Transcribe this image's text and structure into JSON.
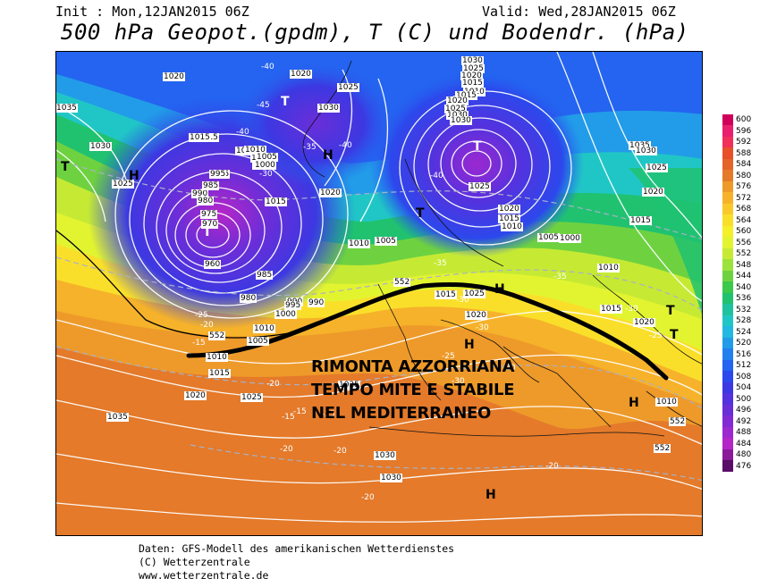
{
  "header": {
    "init": "Init : Mon,12JAN2015 06Z",
    "valid": "Valid: Wed,28JAN2015 06Z",
    "title": "500 hPa Geopot.(gpdm), T (C) und Bodendr. (hPa)"
  },
  "annotation": {
    "line1": "RIMONTA AZZORRIANA",
    "line2": "TEMPO MITE E STABILE",
    "line3": "NEL MEDITERRANEO"
  },
  "pressure_centers": [
    {
      "letter": "T",
      "dark": false
    },
    {
      "letter": "T",
      "dark": false
    },
    {
      "letter": "T",
      "dark": true
    },
    {
      "letter": "T",
      "dark": false
    },
    {
      "letter": "T",
      "dark": true
    },
    {
      "letter": "T",
      "dark": true
    },
    {
      "letter": "H",
      "dark": true
    },
    {
      "letter": "H",
      "dark": true
    },
    {
      "letter": "H",
      "dark": true
    },
    {
      "letter": "H",
      "dark": true
    },
    {
      "letter": "H",
      "dark": true
    },
    {
      "letter": "H",
      "dark": true
    },
    {
      "letter": "T",
      "dark": true
    }
  ],
  "isobar_labels": [
    "1035",
    "1030",
    "1025",
    "1020",
    "1015",
    "1010",
    "1005",
    "1000",
    "995",
    "990",
    "985",
    "980",
    "975",
    "970",
    "960",
    "1020",
    "1025",
    "1030",
    "1015",
    "1010",
    "1005",
    "1000",
    "995",
    "990",
    "985",
    "980",
    "1010",
    "1015",
    "1020",
    "1025",
    "1030",
    "1035",
    "1030",
    "1025",
    "1020",
    "1015",
    "1010",
    "1005",
    "1000",
    "995",
    "990",
    "1010",
    "1005",
    "1015",
    "1020",
    "1025",
    "1030",
    "1025",
    "1020",
    "1015",
    "1010",
    "1015",
    "1020",
    "1025",
    "1030",
    "1030",
    "1025",
    "1020",
    "1015",
    "1010",
    "1005",
    "1000",
    "1010",
    "1015",
    "1020",
    "1035",
    "1030",
    "1025",
    "1020",
    "1015",
    "1010"
  ],
  "temperature_labels": [
    "-40",
    "-45",
    "-40",
    "-30",
    "-35",
    "-40",
    "-40",
    "-35",
    "-30",
    "-30",
    "-25",
    "-20",
    "-30",
    "-25",
    "-20",
    "-15",
    "-20",
    "-25",
    "-20",
    "-15",
    "-15",
    "-20",
    "-20",
    "-35",
    "-30",
    "-25",
    "-20"
  ],
  "geopotential_labels": [
    "552",
    "552",
    "552",
    "552"
  ],
  "legend": {
    "levels": [
      {
        "value": "600",
        "color": "#d0005a"
      },
      {
        "value": "596",
        "color": "#e8206e"
      },
      {
        "value": "592",
        "color": "#f0305a"
      },
      {
        "value": "588",
        "color": "#e8502a"
      },
      {
        "value": "584",
        "color": "#e4642a"
      },
      {
        "value": "580",
        "color": "#e47a2a"
      },
      {
        "value": "576",
        "color": "#ee9a2a"
      },
      {
        "value": "572",
        "color": "#f6b22a"
      },
      {
        "value": "568",
        "color": "#fac82a"
      },
      {
        "value": "564",
        "color": "#fadf2a"
      },
      {
        "value": "560",
        "color": "#f4f02a"
      },
      {
        "value": "556",
        "color": "#e2f430"
      },
      {
        "value": "552",
        "color": "#c6ea34"
      },
      {
        "value": "548",
        "color": "#9ce23c"
      },
      {
        "value": "544",
        "color": "#6ed240"
      },
      {
        "value": "540",
        "color": "#3cc84a"
      },
      {
        "value": "536",
        "color": "#20c270"
      },
      {
        "value": "532",
        "color": "#1ec29e"
      },
      {
        "value": "528",
        "color": "#20c6c6"
      },
      {
        "value": "524",
        "color": "#22b8e0"
      },
      {
        "value": "520",
        "color": "#229ce8"
      },
      {
        "value": "516",
        "color": "#2280ee"
      },
      {
        "value": "512",
        "color": "#2464f0"
      },
      {
        "value": "508",
        "color": "#2c48ec"
      },
      {
        "value": "504",
        "color": "#3c38e2"
      },
      {
        "value": "500",
        "color": "#5432de"
      },
      {
        "value": "496",
        "color": "#6a2ed8"
      },
      {
        "value": "492",
        "color": "#822ad4"
      },
      {
        "value": "488",
        "color": "#9c28d0"
      },
      {
        "value": "484",
        "color": "#b426c8"
      },
      {
        "value": "480",
        "color": "#8a1a9a"
      },
      {
        "value": "476",
        "color": "#5a0c68"
      }
    ]
  },
  "footer": {
    "line1": "Daten: GFS-Modell des amerikanischen Wetterdienstes",
    "line2": "(C) Wetterzentrale",
    "line3": "www.wetterzentrale.de"
  },
  "colors": {
    "ridge_line": "#000000",
    "isobar": "#ffffff",
    "isotherm": "#b0b8c8"
  }
}
